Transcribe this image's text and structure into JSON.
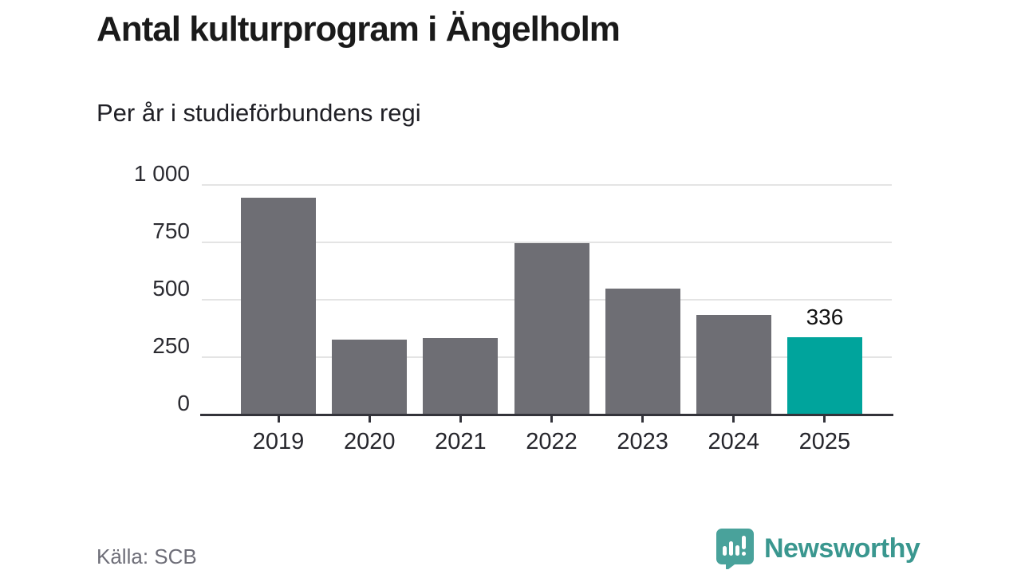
{
  "header": {
    "title": "Antal kulturprogram i Ängelholm",
    "subtitle": "Per år i studieförbundens regi"
  },
  "footer": {
    "source": "Källa: SCB",
    "brand": "Newsworthy",
    "logo_icon": "bar-chart-speech-bubble-icon"
  },
  "chart_data": {
    "type": "bar",
    "title": "Antal kulturprogram i Ängelholm",
    "subtitle": "Per år i studieförbundens regi",
    "categories": [
      "2019",
      "2020",
      "2021",
      "2022",
      "2023",
      "2024",
      "2025"
    ],
    "values": [
      945,
      325,
      335,
      745,
      550,
      433,
      336
    ],
    "highlight_index": 6,
    "annotations": [
      {
        "index": 6,
        "text": "336"
      }
    ],
    "xlabel": "",
    "ylabel": "",
    "ylim": [
      0,
      1000
    ],
    "yticks": [
      0,
      250,
      500,
      750,
      1000
    ],
    "ytick_labels": [
      "0",
      "250",
      "500",
      "750",
      "1 000"
    ],
    "grid": true,
    "legend": false,
    "colors": {
      "bar": "#6e6e74",
      "highlight": "#00a49c",
      "grid": "#e4e4e4",
      "axis": "#33333a",
      "brand": "#3a978f"
    }
  }
}
